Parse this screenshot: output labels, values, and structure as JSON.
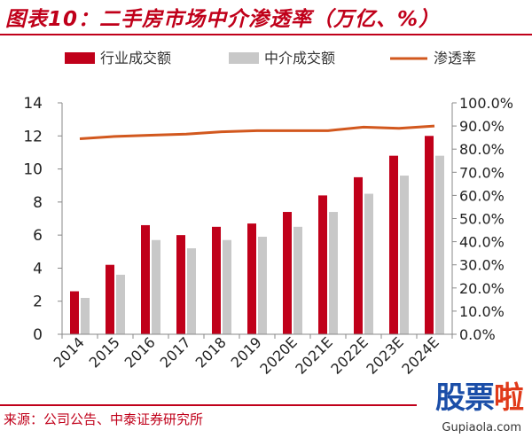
{
  "header": {
    "title": "图表10：二手房市场中介渗透率（万亿、%）"
  },
  "footer": {
    "source": "来源：公司公告、中泰证券研究所"
  },
  "watermark": {
    "chars": [
      "股",
      "票",
      "啦"
    ],
    "url": "Gupiaola.com"
  },
  "colors": {
    "bar1": "#c0001a",
    "bar2": "#c8c8c8",
    "line": "#d2581e",
    "accent": "#c0001a"
  },
  "chart_data": {
    "type": "bar",
    "categories": [
      "2014",
      "2015",
      "2016",
      "2017",
      "2018",
      "2019",
      "2020E",
      "2021E",
      "2022E",
      "2023E",
      "2024E"
    ],
    "series": [
      {
        "name": "行业成交额",
        "type": "bar",
        "axis": "left",
        "values": [
          2.6,
          4.2,
          6.6,
          6.0,
          6.5,
          6.7,
          7.4,
          8.4,
          9.5,
          10.8,
          12.0
        ]
      },
      {
        "name": "中介成交额",
        "type": "bar",
        "axis": "left",
        "values": [
          2.2,
          3.6,
          5.7,
          5.2,
          5.7,
          5.9,
          6.5,
          7.4,
          8.5,
          9.6,
          10.8
        ]
      },
      {
        "name": "渗透率",
        "type": "line",
        "axis": "right",
        "values": [
          84.5,
          85.5,
          86.0,
          86.5,
          87.5,
          88.0,
          88.0,
          88.0,
          89.5,
          89.0,
          90.0
        ]
      }
    ],
    "ylim_left": [
      0,
      14
    ],
    "yticks_left": [
      "0",
      "2",
      "4",
      "6",
      "8",
      "10",
      "12",
      "14"
    ],
    "ylim_right": [
      0,
      100
    ],
    "yticks_right": [
      "0.0%",
      "10.0%",
      "20.0%",
      "30.0%",
      "40.0%",
      "50.0%",
      "60.0%",
      "70.0%",
      "80.0%",
      "90.0%",
      "100.0%"
    ],
    "legend_position": "top",
    "grid": false
  }
}
